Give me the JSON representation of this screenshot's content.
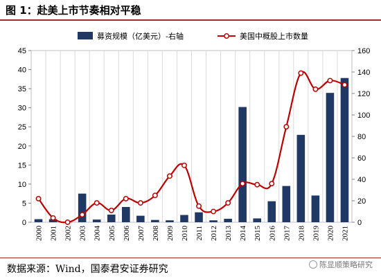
{
  "title": "图 1：赴美上市节奏相对平稳",
  "source": "数据来源：Wind，国泰君安证券研究",
  "watermark": {
    "text": "陈显顺策略研究",
    "icon": "wechat-icon"
  },
  "colors": {
    "bar": "#1f3864",
    "line": "#c00000",
    "title_rule": "#9e2a2b"
  },
  "chart_data": {
    "type": "bar+line",
    "categories": [
      "2000",
      "2001",
      "2002",
      "2003",
      "2004",
      "2005",
      "2006",
      "2007",
      "2008",
      "2009",
      "2010",
      "2011",
      "2012",
      "2013",
      "2014",
      "2015",
      "2016",
      "2017",
      "2018",
      "2019",
      "2020",
      "2021"
    ],
    "series": [
      {
        "name": "募资规模（亿美元）-右轴",
        "type": "bar",
        "axis": "left",
        "values": [
          0.8,
          0.8,
          0.1,
          7.5,
          0.7,
          2.0,
          4.0,
          1.7,
          0.6,
          0.5,
          1.9,
          2.6,
          0.5,
          0.9,
          30.2,
          1.0,
          5.5,
          9.5,
          22.9,
          7.0,
          33.9,
          37.8
        ]
      },
      {
        "name": "美国中概股上市数量",
        "type": "line",
        "axis": "right",
        "values": [
          22,
          4,
          0,
          7,
          18,
          11,
          22,
          18,
          25,
          43,
          53,
          15,
          10,
          18,
          36,
          35,
          36,
          89,
          139,
          124,
          132,
          128
        ]
      }
    ],
    "y_left": {
      "min": 0,
      "max": 45,
      "ticks": [
        0,
        5,
        10,
        15,
        20,
        25,
        30,
        35,
        40,
        45
      ]
    },
    "y_right": {
      "min": 0,
      "max": 160,
      "ticks": [
        0,
        20,
        40,
        60,
        80,
        100,
        120,
        140,
        160
      ]
    },
    "grid": "vertical",
    "legend": "top-center"
  }
}
